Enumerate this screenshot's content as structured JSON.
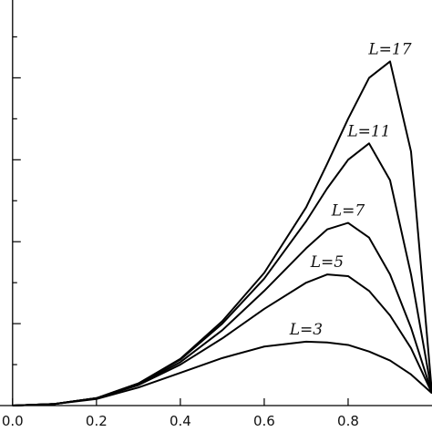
{
  "chart_data": {
    "type": "line",
    "x": [
      0,
      0.1,
      0.2,
      0.3,
      0.4,
      0.5,
      0.6,
      0.7,
      0.75,
      0.8,
      0.85,
      0.9,
      0.95,
      1.0
    ],
    "series": [
      {
        "name": "L=3",
        "color": "#000000",
        "values": [
          0,
          0.02,
          0.08,
          0.22,
          0.4,
          0.58,
          0.72,
          0.78,
          0.77,
          0.74,
          0.66,
          0.55,
          0.38,
          0.15
        ]
      },
      {
        "name": "L=5",
        "color": "#000000",
        "values": [
          0,
          0.02,
          0.09,
          0.25,
          0.5,
          0.82,
          1.18,
          1.5,
          1.6,
          1.58,
          1.4,
          1.1,
          0.7,
          0.15
        ]
      },
      {
        "name": "L=7",
        "color": "#000000",
        "values": [
          0,
          0.02,
          0.09,
          0.26,
          0.53,
          0.92,
          1.4,
          1.92,
          2.15,
          2.23,
          2.05,
          1.6,
          0.95,
          0.15
        ]
      },
      {
        "name": "L=11",
        "color": "#000000",
        "values": [
          0,
          0.02,
          0.09,
          0.27,
          0.56,
          1.0,
          1.55,
          2.25,
          2.65,
          3.0,
          3.2,
          2.75,
          1.6,
          0.15
        ]
      },
      {
        "name": "L=17",
        "color": "#000000",
        "values": [
          0,
          0.02,
          0.09,
          0.27,
          0.57,
          1.03,
          1.62,
          2.42,
          2.95,
          3.5,
          4.0,
          4.2,
          3.1,
          0.15
        ]
      }
    ],
    "xlim": [
      -0.03,
      1.0
    ],
    "xticks": [
      {
        "value": 0,
        "label": "0.0"
      },
      0.2,
      0.4,
      0.6,
      0.8
    ],
    "ylim": [
      0,
      4.95
    ],
    "yticks": [
      0.5,
      1,
      1.5,
      2,
      2.5,
      3,
      3.5,
      4,
      4.5
    ]
  }
}
